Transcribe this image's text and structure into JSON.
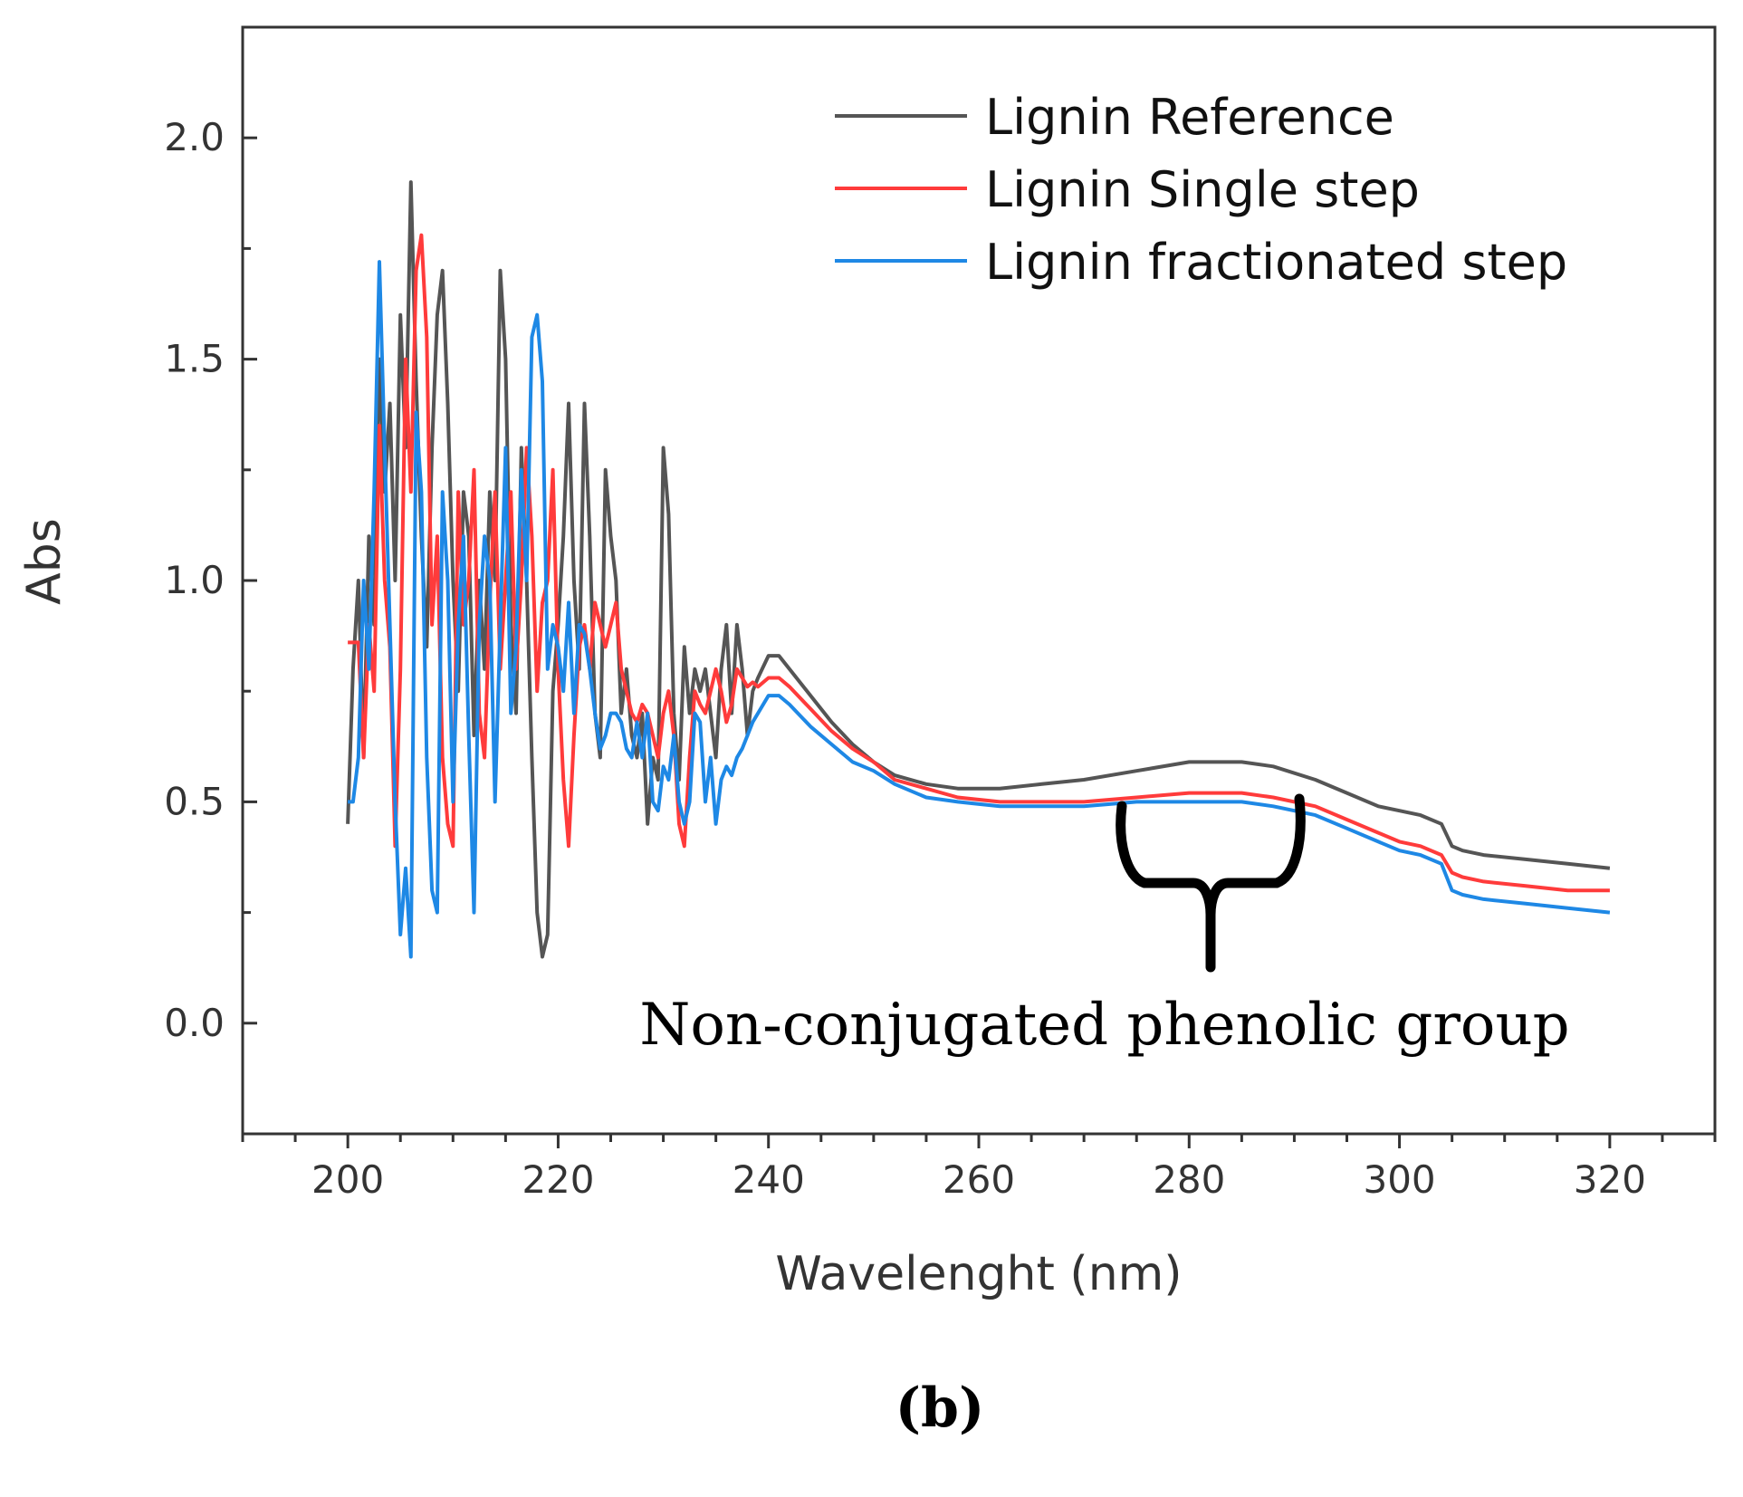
{
  "chart_data": {
    "type": "line",
    "title": "",
    "xlabel": "Wavelenght (nm)",
    "ylabel": "Abs",
    "xlim": [
      190,
      330
    ],
    "ylim": [
      -0.25,
      2.25
    ],
    "xticks": [
      200,
      220,
      240,
      260,
      280,
      300,
      320
    ],
    "xtick_labels": [
      "200",
      "220",
      "240",
      "260",
      "280",
      "300",
      "320"
    ],
    "yticks": [
      0.0,
      0.5,
      1.0,
      1.5,
      2.0
    ],
    "ytick_labels": [
      "0.0",
      "0.5",
      "1.0",
      "1.5",
      "2.0"
    ],
    "grid": false,
    "legend_position": "top-right",
    "series": [
      {
        "name": "Lignin Reference",
        "color": "#555555",
        "x": [
          200,
          200.5,
          201,
          201.5,
          202,
          202.5,
          203,
          203.5,
          204,
          204.5,
          205,
          205.5,
          206,
          206.5,
          207,
          207.5,
          208,
          208.5,
          209,
          209.5,
          210,
          210.5,
          211,
          211.5,
          212,
          212.5,
          213,
          213.5,
          214,
          214.5,
          215,
          215.5,
          216,
          216.5,
          217,
          217.5,
          218,
          218.5,
          219,
          219.5,
          220,
          220.5,
          221,
          221.5,
          222,
          222.5,
          223,
          223.5,
          224,
          224.5,
          225,
          225.5,
          226,
          226.5,
          227,
          227.5,
          228,
          228.5,
          229,
          229.5,
          230,
          230.5,
          231,
          231.5,
          232,
          232.5,
          233,
          233.5,
          234,
          234.5,
          235,
          235.5,
          236,
          236.5,
          237,
          237.5,
          238,
          238.5,
          239,
          240,
          241,
          242,
          244,
          246,
          248,
          250,
          252,
          255,
          258,
          262,
          266,
          270,
          275,
          280,
          285,
          288,
          292,
          295,
          298,
          300,
          302,
          304,
          305,
          306,
          308,
          312,
          316,
          320
        ],
        "y": [
          0.45,
          0.8,
          1.0,
          0.6,
          1.1,
          0.9,
          1.5,
          1.2,
          1.4,
          1.0,
          1.6,
          1.3,
          1.9,
          1.45,
          1.1,
          0.85,
          1.3,
          1.6,
          1.7,
          1.4,
          1.0,
          0.75,
          1.2,
          1.1,
          0.65,
          1.0,
          0.8,
          1.2,
          1.0,
          1.7,
          1.5,
          0.9,
          0.7,
          1.3,
          1.0,
          0.6,
          0.25,
          0.15,
          0.2,
          0.75,
          0.9,
          1.1,
          1.4,
          1.0,
          0.8,
          1.4,
          1.1,
          0.7,
          0.6,
          1.25,
          1.1,
          1.0,
          0.7,
          0.8,
          0.65,
          0.6,
          0.7,
          0.45,
          0.6,
          0.55,
          1.3,
          1.15,
          0.7,
          0.55,
          0.85,
          0.7,
          0.8,
          0.75,
          0.8,
          0.7,
          0.6,
          0.8,
          0.9,
          0.7,
          0.9,
          0.8,
          0.65,
          0.75,
          0.78,
          0.83,
          0.83,
          0.8,
          0.74,
          0.68,
          0.63,
          0.59,
          0.56,
          0.54,
          0.53,
          0.53,
          0.54,
          0.55,
          0.57,
          0.59,
          0.59,
          0.58,
          0.55,
          0.52,
          0.49,
          0.48,
          0.47,
          0.45,
          0.4,
          0.39,
          0.38,
          0.37,
          0.36,
          0.35
        ]
      },
      {
        "name": "Lignin Single step",
        "color": "#ff3b3b",
        "x": [
          200,
          200.5,
          201,
          201.5,
          202,
          202.5,
          203,
          203.5,
          204,
          204.5,
          205,
          205.5,
          206,
          206.5,
          207,
          207.5,
          208,
          208.5,
          209,
          209.5,
          210,
          210.5,
          211,
          211.5,
          212,
          212.5,
          213,
          213.5,
          214,
          214.5,
          215,
          215.5,
          216,
          216.5,
          217,
          217.5,
          218,
          218.5,
          219,
          219.5,
          220,
          220.5,
          221,
          221.5,
          222,
          222.5,
          223,
          223.5,
          224,
          224.5,
          225,
          225.5,
          226,
          226.5,
          227,
          227.5,
          228,
          228.5,
          229,
          229.5,
          230,
          230.5,
          231,
          231.5,
          232,
          232.5,
          233,
          233.5,
          234,
          234.5,
          235,
          235.5,
          236,
          236.5,
          237,
          237.5,
          238,
          238.5,
          239,
          240,
          241,
          242,
          244,
          246,
          248,
          250,
          252,
          255,
          258,
          262,
          266,
          270,
          275,
          280,
          285,
          288,
          292,
          295,
          298,
          300,
          302,
          304,
          305,
          306,
          308,
          312,
          316,
          320
        ],
        "y": [
          0.86,
          0.86,
          0.86,
          0.6,
          0.9,
          0.75,
          1.35,
          1.0,
          0.85,
          0.4,
          0.8,
          1.5,
          1.2,
          1.7,
          1.78,
          1.55,
          0.9,
          1.1,
          0.6,
          0.45,
          0.4,
          1.2,
          0.9,
          1.0,
          1.25,
          0.7,
          0.6,
          0.95,
          1.2,
          0.8,
          1.0,
          1.2,
          0.8,
          1.0,
          1.3,
          1.1,
          0.75,
          0.95,
          1.0,
          1.25,
          0.8,
          0.55,
          0.4,
          0.65,
          0.85,
          0.9,
          0.8,
          0.95,
          0.9,
          0.85,
          0.9,
          0.95,
          0.8,
          0.75,
          0.7,
          0.68,
          0.72,
          0.7,
          0.65,
          0.6,
          0.7,
          0.75,
          0.65,
          0.45,
          0.4,
          0.6,
          0.75,
          0.72,
          0.7,
          0.75,
          0.8,
          0.75,
          0.68,
          0.72,
          0.8,
          0.78,
          0.76,
          0.77,
          0.76,
          0.78,
          0.78,
          0.76,
          0.71,
          0.66,
          0.62,
          0.59,
          0.55,
          0.53,
          0.51,
          0.5,
          0.5,
          0.5,
          0.51,
          0.52,
          0.52,
          0.51,
          0.49,
          0.46,
          0.43,
          0.41,
          0.4,
          0.38,
          0.34,
          0.33,
          0.32,
          0.31,
          0.3,
          0.3
        ]
      },
      {
        "name": "Lignin fractionated step",
        "color": "#1e88e5",
        "x": [
          200,
          200.5,
          201,
          201.5,
          202,
          202.5,
          203,
          203.5,
          204,
          204.5,
          205,
          205.5,
          206,
          206.5,
          207,
          207.5,
          208,
          208.5,
          209,
          209.5,
          210,
          210.5,
          211,
          211.5,
          212,
          212.5,
          213,
          213.5,
          214,
          214.5,
          215,
          215.5,
          216,
          216.5,
          217,
          217.5,
          218,
          218.5,
          219,
          219.5,
          220,
          220.5,
          221,
          221.5,
          222,
          222.5,
          223,
          223.5,
          224,
          224.5,
          225,
          225.5,
          226,
          226.5,
          227,
          227.5,
          228,
          228.5,
          229,
          229.5,
          230,
          230.5,
          231,
          231.5,
          232,
          232.5,
          233,
          233.5,
          234,
          234.5,
          235,
          235.5,
          236,
          236.5,
          237,
          237.5,
          238,
          238.5,
          239,
          240,
          241,
          242,
          244,
          246,
          248,
          250,
          252,
          255,
          258,
          262,
          266,
          270,
          275,
          280,
          285,
          288,
          292,
          295,
          298,
          300,
          302,
          304,
          305,
          306,
          308,
          312,
          316,
          320
        ],
        "y": [
          0.5,
          0.5,
          0.6,
          1.0,
          0.8,
          1.2,
          1.72,
          1.3,
          0.9,
          0.5,
          0.2,
          0.35,
          0.15,
          1.38,
          1.2,
          0.6,
          0.3,
          0.25,
          1.2,
          1.0,
          0.5,
          0.9,
          1.1,
          0.65,
          0.25,
          0.9,
          1.1,
          1.0,
          0.5,
          0.9,
          1.3,
          0.7,
          0.85,
          1.25,
          1.0,
          1.55,
          1.6,
          1.45,
          0.8,
          0.9,
          0.85,
          0.75,
          0.95,
          0.7,
          0.9,
          0.88,
          0.8,
          0.7,
          0.62,
          0.65,
          0.7,
          0.7,
          0.68,
          0.62,
          0.6,
          0.68,
          0.6,
          0.7,
          0.5,
          0.48,
          0.58,
          0.55,
          0.65,
          0.5,
          0.45,
          0.5,
          0.7,
          0.68,
          0.5,
          0.6,
          0.45,
          0.55,
          0.58,
          0.56,
          0.6,
          0.62,
          0.65,
          0.68,
          0.7,
          0.74,
          0.74,
          0.72,
          0.67,
          0.63,
          0.59,
          0.57,
          0.54,
          0.51,
          0.5,
          0.49,
          0.49,
          0.49,
          0.5,
          0.5,
          0.5,
          0.49,
          0.47,
          0.44,
          0.41,
          0.39,
          0.38,
          0.36,
          0.3,
          0.29,
          0.28,
          0.27,
          0.26,
          0.25
        ]
      }
    ],
    "annotations": [
      {
        "text": "Non-conjugated phenolic group",
        "x": 282,
        "y": 0.0,
        "bracket_from": 274,
        "bracket_to": 290,
        "bracket_y": 0.5
      }
    ]
  },
  "panel_label": "(b)"
}
